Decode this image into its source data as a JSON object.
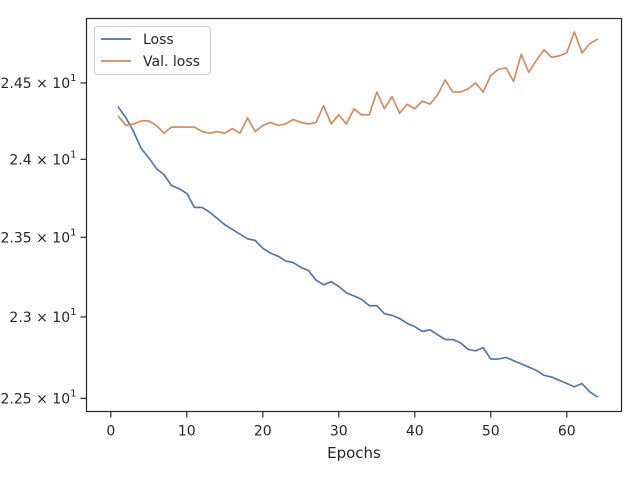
{
  "chart_data": {
    "type": "line",
    "title": "",
    "xlabel": "Epochs",
    "ylabel": "",
    "x_ticks": [
      0,
      10,
      20,
      30,
      40,
      50,
      60
    ],
    "y_ticks": [
      {
        "value": 22.5,
        "mantissa": "2.25",
        "exponent": "1"
      },
      {
        "value": 23.0,
        "mantissa": "2.3",
        "exponent": "1"
      },
      {
        "value": 23.5,
        "mantissa": "2.35",
        "exponent": "1"
      },
      {
        "value": 24.0,
        "mantissa": "2.4",
        "exponent": "1"
      },
      {
        "value": 24.5,
        "mantissa": "2.45",
        "exponent": "1"
      }
    ],
    "xlim": [
      -3.2,
      67.2
    ],
    "ylim": [
      22.42,
      24.93
    ],
    "y_scale": "log",
    "grid": false,
    "legend_position": "top-left",
    "x": [
      1,
      2,
      3,
      4,
      5,
      6,
      7,
      8,
      9,
      10,
      11,
      12,
      13,
      14,
      15,
      16,
      17,
      18,
      19,
      20,
      21,
      22,
      23,
      24,
      25,
      26,
      27,
      28,
      29,
      30,
      31,
      32,
      33,
      34,
      35,
      36,
      37,
      38,
      39,
      40,
      41,
      42,
      43,
      44,
      45,
      46,
      47,
      48,
      49,
      50,
      51,
      52,
      53,
      54,
      55,
      56,
      57,
      58,
      59,
      60,
      61,
      62,
      63,
      64
    ],
    "series": [
      {
        "name": "Loss",
        "color": "#4c72b0",
        "values": [
          24.34,
          24.27,
          24.18,
          24.07,
          24.01,
          23.94,
          23.9,
          23.83,
          23.81,
          23.78,
          23.69,
          23.69,
          23.66,
          23.62,
          23.58,
          23.55,
          23.52,
          23.49,
          23.48,
          23.43,
          23.4,
          23.38,
          23.35,
          23.34,
          23.31,
          23.29,
          23.23,
          23.2,
          23.22,
          23.19,
          23.15,
          23.13,
          23.11,
          23.07,
          23.07,
          23.02,
          23.01,
          22.99,
          22.96,
          22.94,
          22.91,
          22.92,
          22.89,
          22.86,
          22.86,
          22.84,
          22.8,
          22.79,
          22.81,
          22.74,
          22.74,
          22.75,
          22.73,
          22.71,
          22.69,
          22.67,
          22.64,
          22.63,
          22.61,
          22.59,
          22.57,
          22.59,
          22.54,
          22.51
        ]
      },
      {
        "name": "Val. loss",
        "color": "#dd8452",
        "values": [
          24.28,
          24.22,
          24.23,
          24.25,
          24.25,
          24.22,
          24.17,
          24.21,
          24.21,
          24.21,
          24.21,
          24.18,
          24.17,
          24.18,
          24.17,
          24.2,
          24.17,
          24.27,
          24.18,
          24.22,
          24.24,
          24.22,
          24.23,
          24.26,
          24.24,
          24.23,
          24.24,
          24.35,
          24.23,
          24.29,
          24.23,
          24.33,
          24.29,
          24.29,
          24.44,
          24.33,
          24.41,
          24.3,
          24.36,
          24.33,
          24.38,
          24.36,
          24.42,
          24.52,
          24.44,
          24.44,
          24.46,
          24.5,
          24.44,
          24.55,
          24.59,
          24.6,
          24.51,
          24.69,
          24.57,
          24.65,
          24.72,
          24.67,
          24.68,
          24.7,
          24.84,
          24.7,
          24.76,
          24.79
        ]
      }
    ]
  }
}
